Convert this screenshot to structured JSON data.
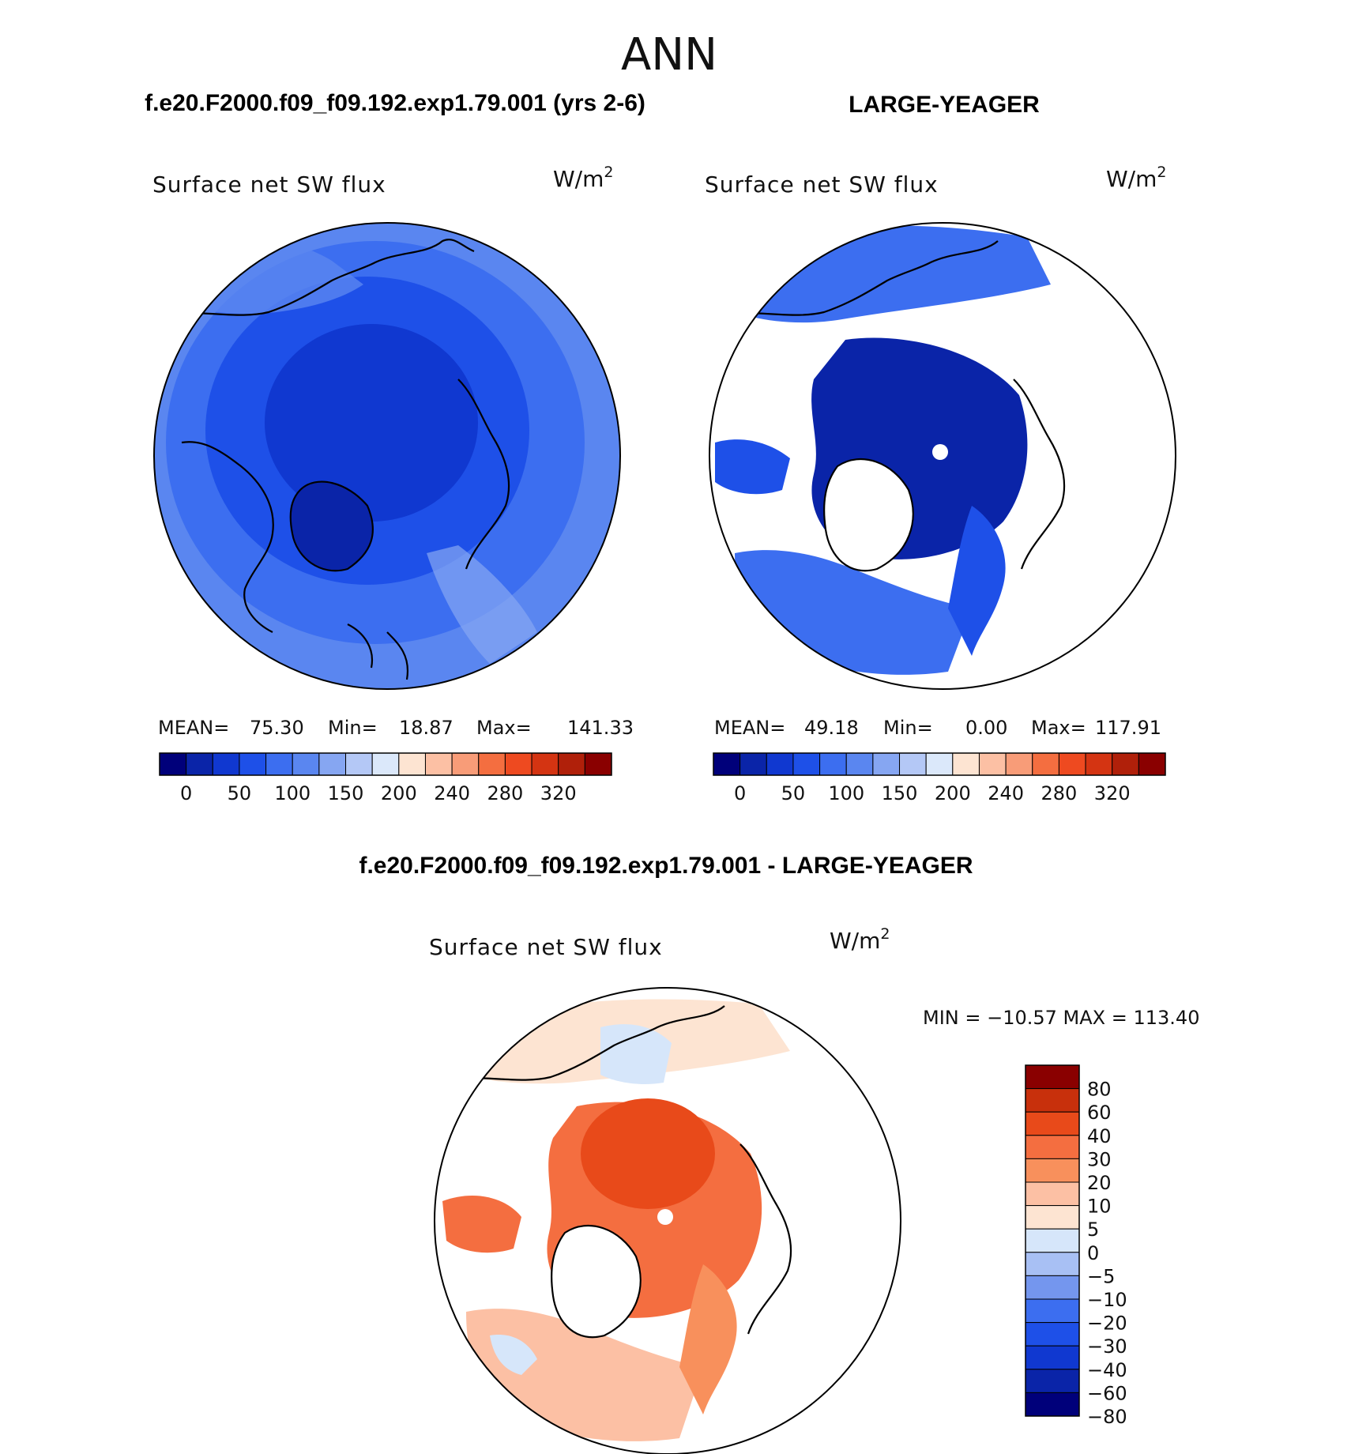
{
  "figure": {
    "title": "ANN",
    "case_left": "f.e20.F2000.f09_f09.192.exp1.79.001 (yrs 2-6)",
    "case_right": "LARGE-YEAGER",
    "diff_title": "f.e20.F2000.f09_f09.192.exp1.79.001 - LARGE-YEAGER"
  },
  "panels": [
    {
      "variable": "Surface net SW flux",
      "units_base": "W/m",
      "units_exp": "2",
      "mean_label": "MEAN=",
      "mean": "75.30",
      "min_label": "Min=",
      "min": "18.87",
      "max_label": "Max=",
      "max": "141.33"
    },
    {
      "variable": "Surface net SW flux",
      "units_base": "W/m",
      "units_exp": "2",
      "mean_label": "MEAN=",
      "mean": "49.18",
      "min_label": "Min=",
      "min": "0.00",
      "max_label": "Max=",
      "max": "117.91"
    },
    {
      "variable": "Surface net SW flux",
      "units_base": "W/m",
      "units_exp": "2",
      "minmax": "MIN = −10.57 MAX = 113.40"
    }
  ],
  "colors": {
    "abs_palette": [
      "#00007a",
      "#0a24a8",
      "#1038d0",
      "#1e50e8",
      "#3c6ef0",
      "#5a86f0",
      "#86a6f2",
      "#b4c8f6",
      "#dbe8fa",
      "#fde4d2",
      "#fcc0a4",
      "#f89c78",
      "#f46e40",
      "#ee4a20",
      "#d43412",
      "#b0200a",
      "#8a0000"
    ],
    "diff_palette": [
      "#00007a",
      "#0a24a8",
      "#1038d0",
      "#1e50e8",
      "#3c6ef0",
      "#7496ee",
      "#a8c0f4",
      "#d6e6fa",
      "#fde4d2",
      "#fcc0a4",
      "#f8905c",
      "#f46e40",
      "#e84a1a",
      "#c8300c",
      "#8a0000"
    ],
    "map_abs_fill": "#3c6ef0",
    "map_pole_fill": "#1038d0",
    "map_diff_fill": "#f8905c",
    "map_diff_pole": "#e84a1a"
  },
  "chart_data": [
    {
      "type": "heatmap",
      "title": "Surface net SW flux",
      "units": "W/m2",
      "projection": "north polar stereographic",
      "colorbar_levels": [
        0,
        25,
        50,
        75,
        100,
        125,
        150,
        175,
        200,
        220,
        240,
        260,
        280,
        300,
        320
      ],
      "colorbar_tick_labels": [
        "0",
        "50",
        "100",
        "150",
        "200",
        "240",
        "280",
        "320"
      ],
      "stats": {
        "mean": 75.3,
        "min": 18.87,
        "max": 141.33
      }
    },
    {
      "type": "heatmap",
      "title": "Surface net SW flux",
      "units": "W/m2",
      "projection": "north polar stereographic",
      "colorbar_levels": [
        0,
        25,
        50,
        75,
        100,
        125,
        150,
        175,
        200,
        220,
        240,
        260,
        280,
        300,
        320
      ],
      "colorbar_tick_labels": [
        "0",
        "50",
        "100",
        "150",
        "200",
        "240",
        "280",
        "320"
      ],
      "stats": {
        "mean": 49.18,
        "min": 0.0,
        "max": 117.91
      }
    },
    {
      "type": "heatmap",
      "title": "Surface net SW flux",
      "units": "W/m2",
      "projection": "north polar stereographic",
      "colorbar_levels": [
        80,
        60,
        40,
        30,
        20,
        10,
        5,
        0,
        -5,
        -10,
        -20,
        -30,
        -40,
        -60,
        -80
      ],
      "colorbar_tick_labels": [
        "80",
        "60",
        "40",
        "30",
        "20",
        "10",
        "5",
        "0",
        "−5",
        "−10",
        "−20",
        "−30",
        "−40",
        "−60",
        "−80"
      ],
      "stats": {
        "min": -10.57,
        "max": 113.4
      }
    }
  ]
}
